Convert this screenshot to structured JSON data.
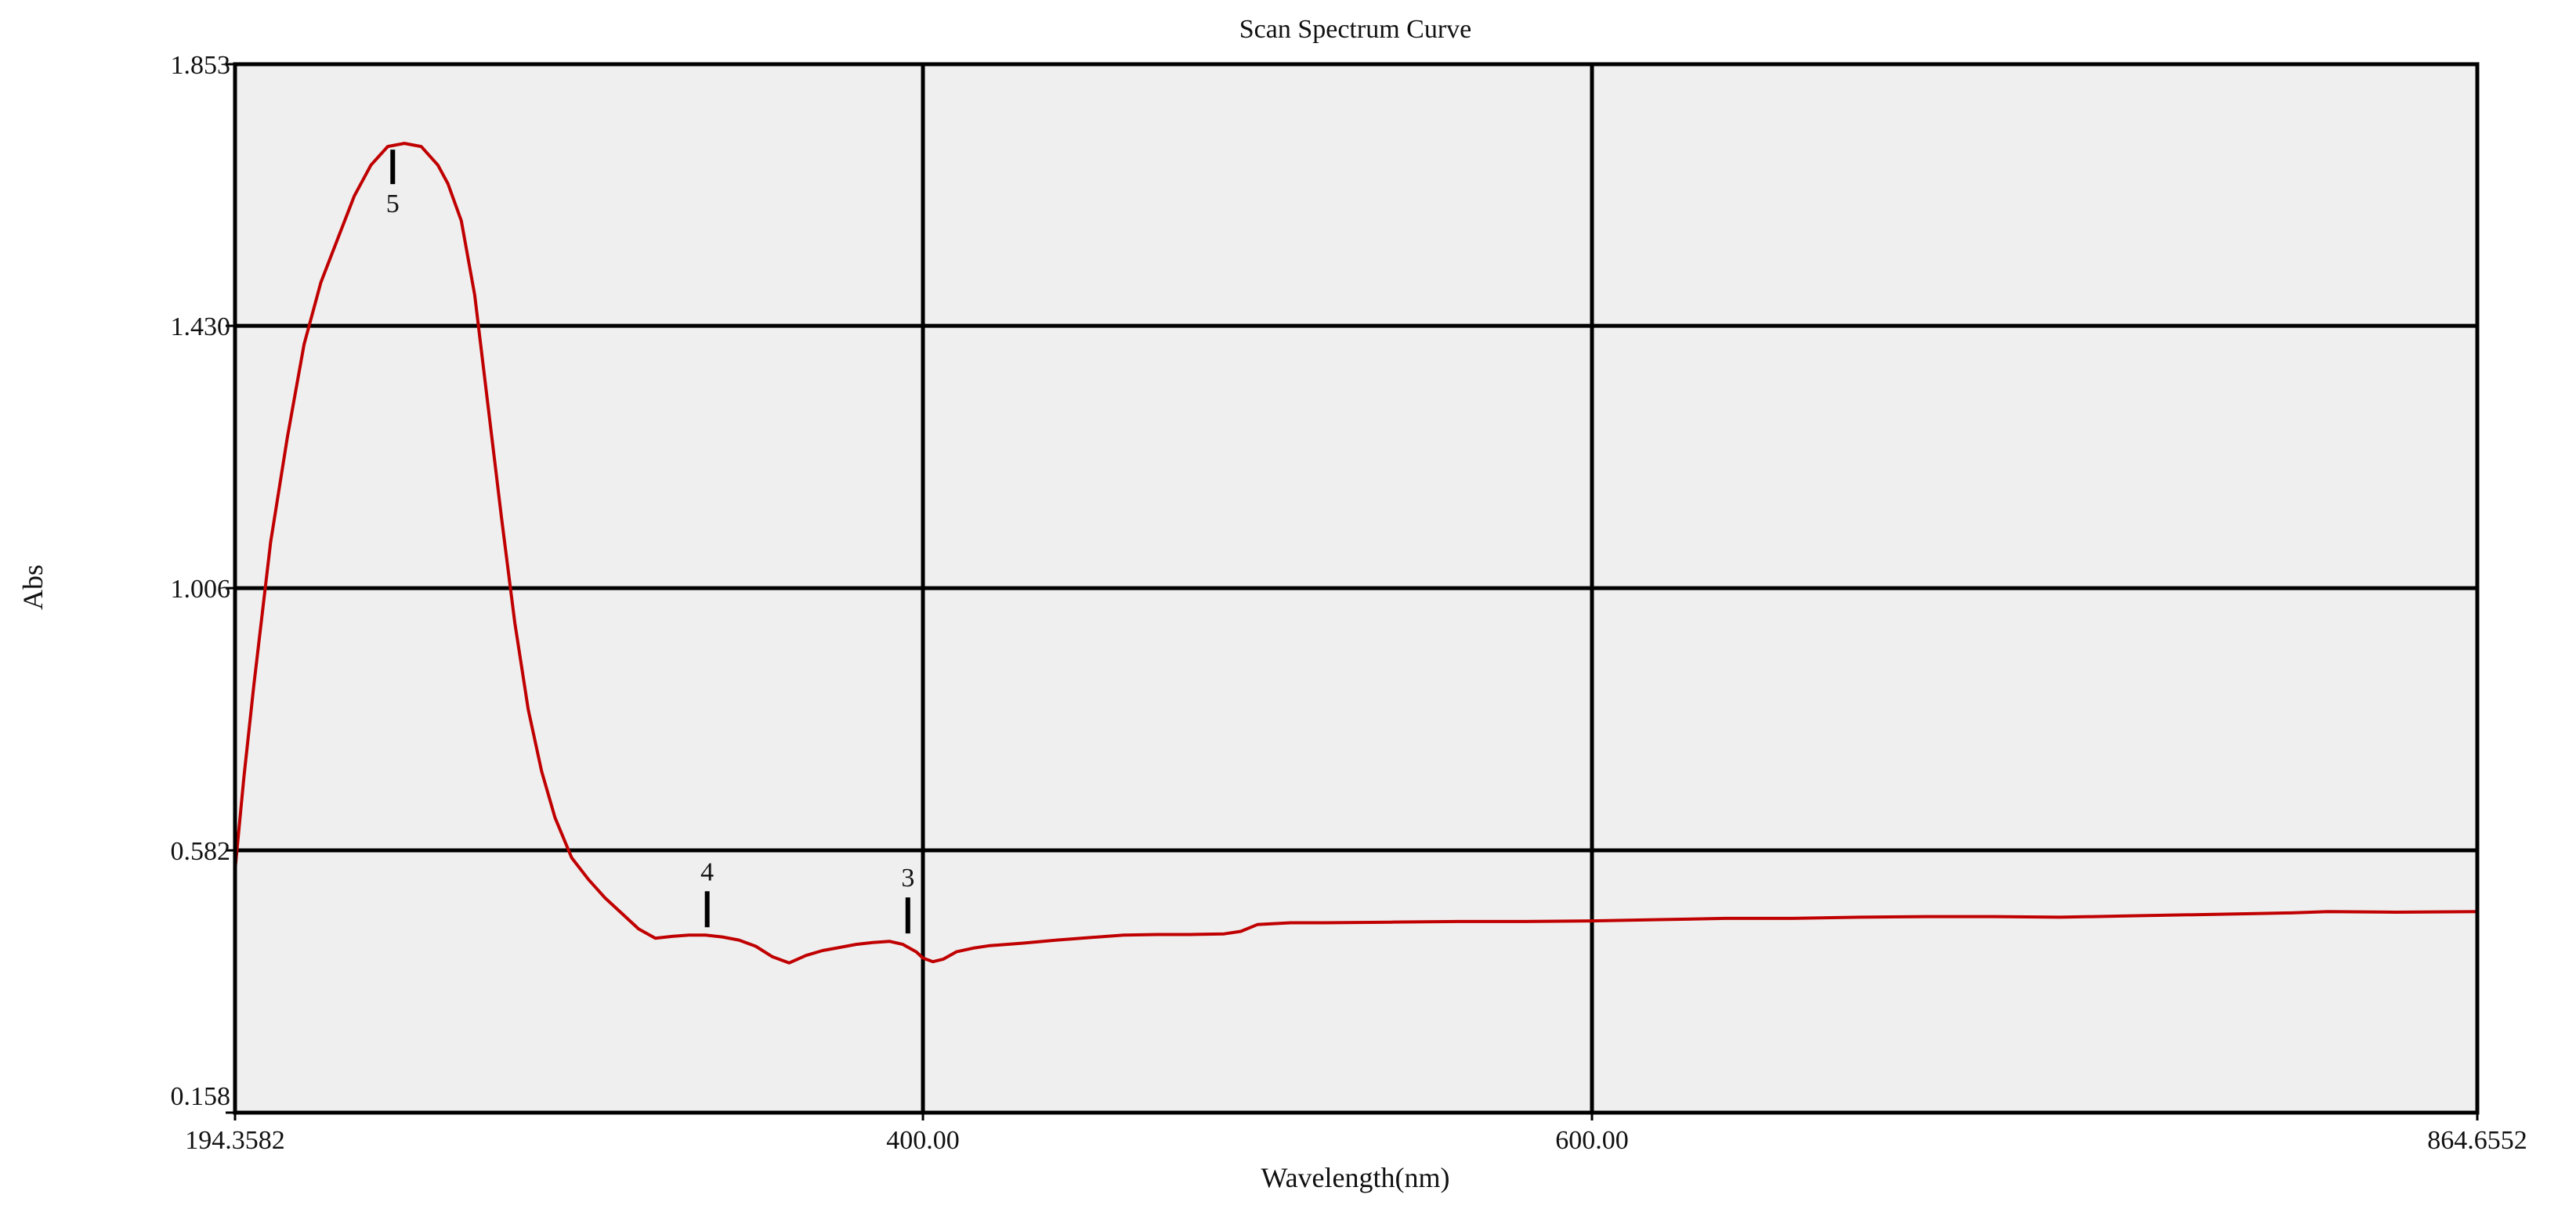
{
  "chart_data": {
    "type": "line",
    "title": "Scan Spectrum Curve",
    "xlabel": "Wavelength(nm)",
    "ylabel": "Abs",
    "xlim": [
      194.3582,
      864.6552
    ],
    "ylim": [
      0.158,
      1.853
    ],
    "x_ticks": [
      {
        "value": 194.3582,
        "label": "194.3582"
      },
      {
        "value": 400.0,
        "label": "400.00"
      },
      {
        "value": 600.0,
        "label": "600.00"
      },
      {
        "value": 864.6552,
        "label": "864.6552"
      }
    ],
    "y_ticks": [
      {
        "value": 0.158,
        "label": "0.158"
      },
      {
        "value": 0.582,
        "label": "0.582"
      },
      {
        "value": 1.006,
        "label": "1.006"
      },
      {
        "value": 1.43,
        "label": "1.430"
      },
      {
        "value": 1.853,
        "label": "1.853"
      }
    ],
    "grid": true,
    "background": "#efefef",
    "line_color": "#c00000",
    "series": [
      {
        "x": [
          194.36,
          197,
          200,
          205,
          210,
          215,
          220,
          225,
          230,
          235,
          240,
          245,
          250,
          255,
          258,
          262,
          266,
          270,
          274,
          278,
          282,
          286,
          290,
          295,
          300,
          305,
          310,
          315,
          320,
          325,
          330,
          335,
          340,
          345,
          350,
          355,
          360,
          365,
          370,
          375,
          380,
          385,
          390,
          394,
          398,
          400,
          403,
          406,
          410,
          415,
          420,
          425,
          430,
          440,
          450,
          460,
          470,
          480,
          490,
          495,
          500,
          510,
          520,
          540,
          560,
          580,
          600,
          620,
          640,
          660,
          680,
          700,
          720,
          740,
          760,
          780,
          800,
          810,
          820,
          840,
          864.66
        ],
        "y": [
          0.55,
          0.7,
          0.85,
          1.08,
          1.25,
          1.4,
          1.5,
          1.57,
          1.64,
          1.69,
          1.72,
          1.725,
          1.72,
          1.69,
          1.66,
          1.6,
          1.48,
          1.3,
          1.12,
          0.95,
          0.81,
          0.71,
          0.635,
          0.57,
          0.535,
          0.505,
          0.48,
          0.455,
          0.44,
          0.443,
          0.445,
          0.445,
          0.442,
          0.437,
          0.427,
          0.41,
          0.4,
          0.412,
          0.42,
          0.425,
          0.43,
          0.433,
          0.435,
          0.43,
          0.418,
          0.408,
          0.402,
          0.406,
          0.418,
          0.424,
          0.428,
          0.43,
          0.432,
          0.437,
          0.441,
          0.445,
          0.446,
          0.446,
          0.447,
          0.451,
          0.462,
          0.465,
          0.465,
          0.466,
          0.467,
          0.467,
          0.468,
          0.47,
          0.472,
          0.472,
          0.474,
          0.475,
          0.475,
          0.474,
          0.476,
          0.478,
          0.48,
          0.481,
          0.483,
          0.482,
          0.483
        ]
      }
    ],
    "peak_markers": [
      {
        "label": "5",
        "x": 241.5,
        "y": 1.725,
        "position": "below"
      },
      {
        "label": "4",
        "x": 335.5,
        "y": 0.445,
        "position": "above"
      },
      {
        "label": "3",
        "x": 395.5,
        "y": 0.435,
        "position": "above"
      }
    ]
  }
}
